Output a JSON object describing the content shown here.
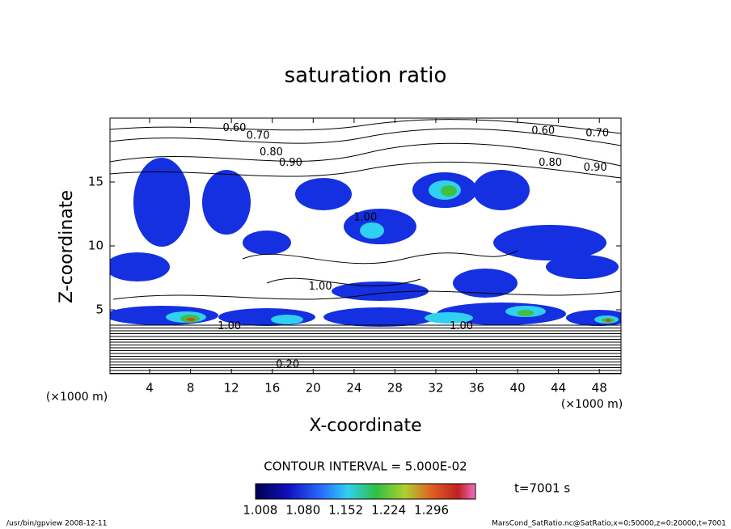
{
  "chart_data": {
    "type": "contour",
    "title": "saturation ratio",
    "x_label": "X-coordinate",
    "y_label": "Z-coordinate",
    "x_unit": "(×1000 m)",
    "y_unit": "(×1000 m)",
    "xlim": [
      0,
      50
    ],
    "ylim": [
      0,
      20
    ],
    "xticks": [
      4,
      8,
      12,
      16,
      20,
      24,
      28,
      32,
      36,
      40,
      44,
      48
    ],
    "yticks": [
      5,
      10,
      15
    ],
    "contour_interval_label": "CONTOUR INTERVAL = 5.000E-02",
    "time_label": "t=7001 s",
    "contour_labels": [
      {
        "text": "0.60",
        "x": 12.3,
        "y": 19.2
      },
      {
        "text": "0.70",
        "x": 14.6,
        "y": 18.6
      },
      {
        "text": "0.80",
        "x": 15.9,
        "y": 17.3
      },
      {
        "text": "0.90",
        "x": 17.8,
        "y": 16.5
      },
      {
        "text": "1.00",
        "x": 25.1,
        "y": 12.2
      },
      {
        "text": "1.00",
        "x": 20.7,
        "y": 6.8
      },
      {
        "text": "1.00",
        "x": 11.8,
        "y": 3.7
      },
      {
        "text": "1.00",
        "x": 34.5,
        "y": 3.7
      },
      {
        "text": "0.60",
        "x": 42.5,
        "y": 19.0
      },
      {
        "text": "0.70",
        "x": 47.8,
        "y": 18.8
      },
      {
        "text": "0.80",
        "x": 43.2,
        "y": 16.5
      },
      {
        "text": "0.90",
        "x": 47.6,
        "y": 16.1
      },
      {
        "text": "0.20",
        "x": 17.5,
        "y": 0.7
      }
    ],
    "colorbar": {
      "lim": [
        1.0,
        1.37
      ],
      "ticks": [
        {
          "value": 1.008,
          "label": "1.008"
        },
        {
          "value": 1.08,
          "label": "1.080"
        },
        {
          "value": 1.152,
          "label": "1.152"
        },
        {
          "value": 1.224,
          "label": "1.224"
        },
        {
          "value": 1.296,
          "label": "1.296"
        }
      ]
    },
    "footer_left": "/usr/bin/gpview   2008-12-11",
    "footer_right": "MarsCond_SatRatio.nc@SatRatio,x=0:50000,z=0:20000,t=7001"
  }
}
